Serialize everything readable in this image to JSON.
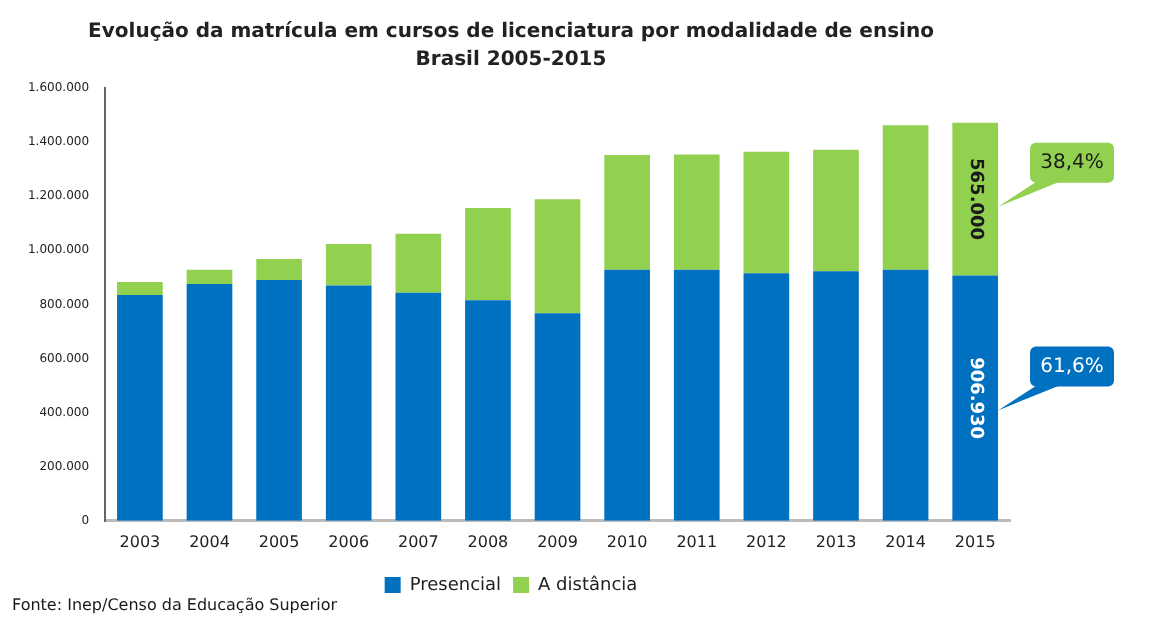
{
  "chart_data": {
    "type": "bar",
    "title": "Evolução da matrícula em cursos de licenciatura por modalidade de ensino",
    "subtitle": "Brasil 2005-2015",
    "categories": [
      "2003",
      "2004",
      "2005",
      "2006",
      "2007",
      "2008",
      "2009",
      "2010",
      "2011",
      "2012",
      "2013",
      "2014",
      "2015"
    ],
    "stacked": true,
    "series": [
      {
        "name": "Presencial",
        "color": "#0070c0",
        "values": [
          835000,
          875000,
          890000,
          870000,
          843000,
          815000,
          767000,
          928000,
          928000,
          915000,
          923000,
          928000,
          906930
        ],
        "value_labels": [
          null,
          null,
          null,
          null,
          null,
          null,
          null,
          null,
          null,
          null,
          null,
          null,
          "906.930"
        ]
      },
      {
        "name": "A distância",
        "color": "#92d050",
        "values": [
          48000,
          53000,
          78000,
          153000,
          218000,
          341000,
          422000,
          424000,
          426000,
          449000,
          449000,
          534000,
          565000
        ],
        "value_labels": [
          null,
          null,
          null,
          null,
          null,
          null,
          null,
          null,
          null,
          null,
          null,
          null,
          "565.000"
        ]
      }
    ],
    "ylim": [
      0,
      1600000
    ],
    "yticks": [
      0,
      {
        "value": 200000,
        "label": "200.000"
      },
      {
        "value": 400000,
        "label": "400.000"
      },
      {
        "value": 600000,
        "label": "600.000"
      },
      {
        "value": 800000,
        "label": "800.000"
      },
      {
        "value": 1000000,
        "label": "1.000.000"
      },
      {
        "value": 1200000,
        "label": "1.200.000"
      },
      {
        "value": 1400000,
        "label": "1.400.000"
      },
      {
        "value": 1600000,
        "label": "1.600.000"
      }
    ],
    "grid": false,
    "legend": "bottom",
    "annotations": [
      "38,4%",
      "61,6%",
      "Fonte: Inep/Censo da Educação Superior"
    ]
  }
}
